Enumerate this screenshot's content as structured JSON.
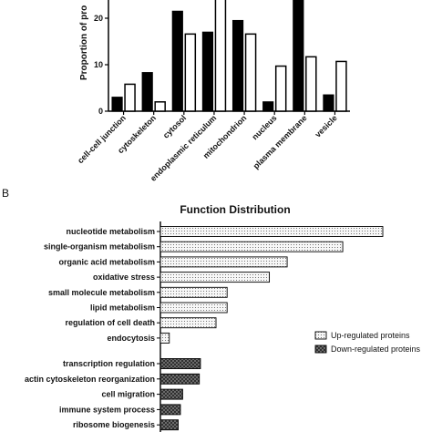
{
  "chart_data": [
    {
      "type": "bar",
      "ylabel": "Proportion of pro",
      "ylim": [
        0,
        25
      ],
      "yticks": [
        "0",
        "10",
        "20"
      ],
      "categories": [
        "cell-cell junction",
        "cytoskeleton",
        "cytosol",
        "endoplasmic reticulum",
        "mitochondrion",
        "nucleus",
        "plasma membrane",
        "vesicle"
      ],
      "series": [
        {
          "values": [
            3,
            8.3,
            21.5,
            17,
            19.5,
            2,
            25,
            3.5
          ],
          "color": "#000000"
        },
        {
          "values": [
            5.8,
            2,
            16.6,
            25,
            16.6,
            9.7,
            11.7,
            10.7
          ],
          "color": "#ffffff"
        }
      ],
      "grid": false
    },
    {
      "type": "bar",
      "orientation": "horizontal",
      "panel_label": "B",
      "title": "Function Distribution",
      "legend_position": "right",
      "series": [
        {
          "name": "Up-regulated proteins",
          "pattern": "dots",
          "categories": [
            "nucleotide metabolism",
            "single-organism metabolism",
            "organic acid metabolism",
            "oxidative stress",
            "small molecule metabolism",
            "lipid metabolism",
            "regulation of cell death",
            "endocytosis"
          ],
          "values": [
            100,
            82,
            57,
            49,
            30,
            30,
            25,
            4
          ]
        },
        {
          "name": "Down-regulated proteins",
          "pattern": "crosshatch",
          "categories": [
            "transcription regulation",
            "actin cytoskeleton reorganization",
            "cell migration",
            "immune system process",
            "ribosome biogenesis"
          ],
          "values": [
            18,
            17.5,
            10,
            9,
            8
          ]
        }
      ]
    }
  ]
}
